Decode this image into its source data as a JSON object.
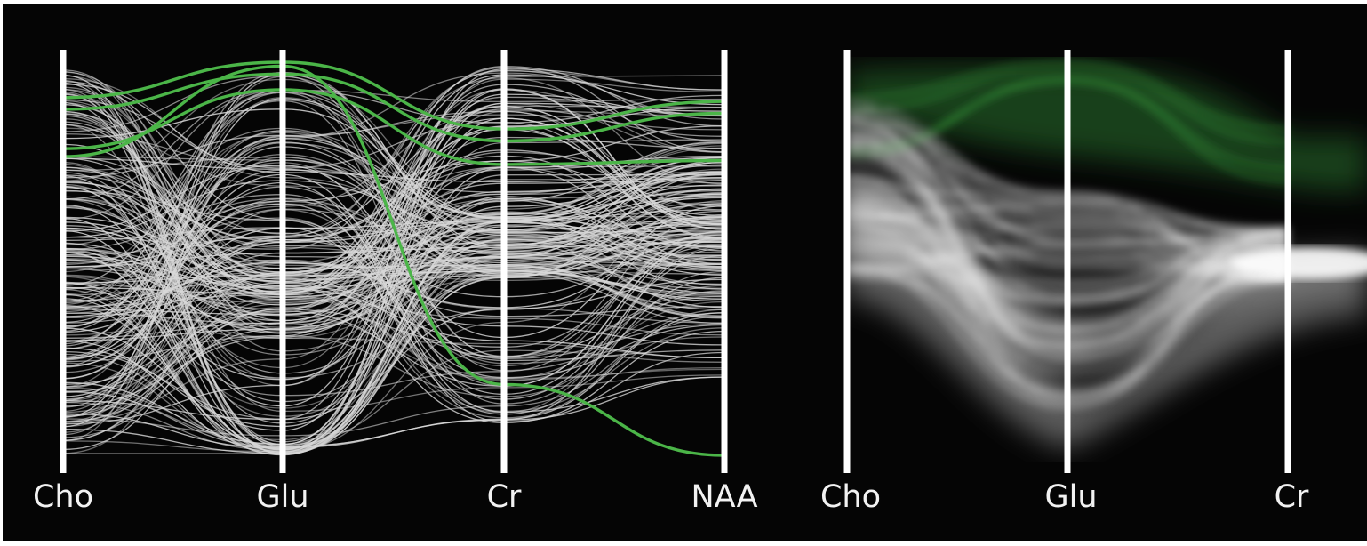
{
  "chart_data": [
    {
      "type": "parallel-coordinates",
      "rendering": "lines",
      "axes": [
        "Cho",
        "Glu",
        "Cr",
        "NAA"
      ],
      "value_range": [
        0,
        1
      ],
      "colors": {
        "background": "#050505",
        "axis": "#ffffff",
        "context": "#d8d8d8",
        "highlight": "#4bb548"
      },
      "highlighted": [
        [
          0.91,
          1.0,
          0.83,
          0.9
        ],
        [
          0.88,
          0.97,
          0.8,
          0.87
        ],
        [
          0.78,
          0.93,
          0.74,
          0.75
        ],
        [
          0.76,
          0.99,
          0.18,
          0.0
        ]
      ],
      "context_count": 220
    },
    {
      "type": "parallel-coordinates",
      "rendering": "density",
      "axes": [
        "Cho",
        "Glu",
        "Cr"
      ],
      "value_range": [
        0,
        1
      ],
      "colors": {
        "background": "#050505",
        "axis": "#ffffff",
        "context": "#ffffff",
        "highlight": "#3fb043"
      }
    }
  ]
}
